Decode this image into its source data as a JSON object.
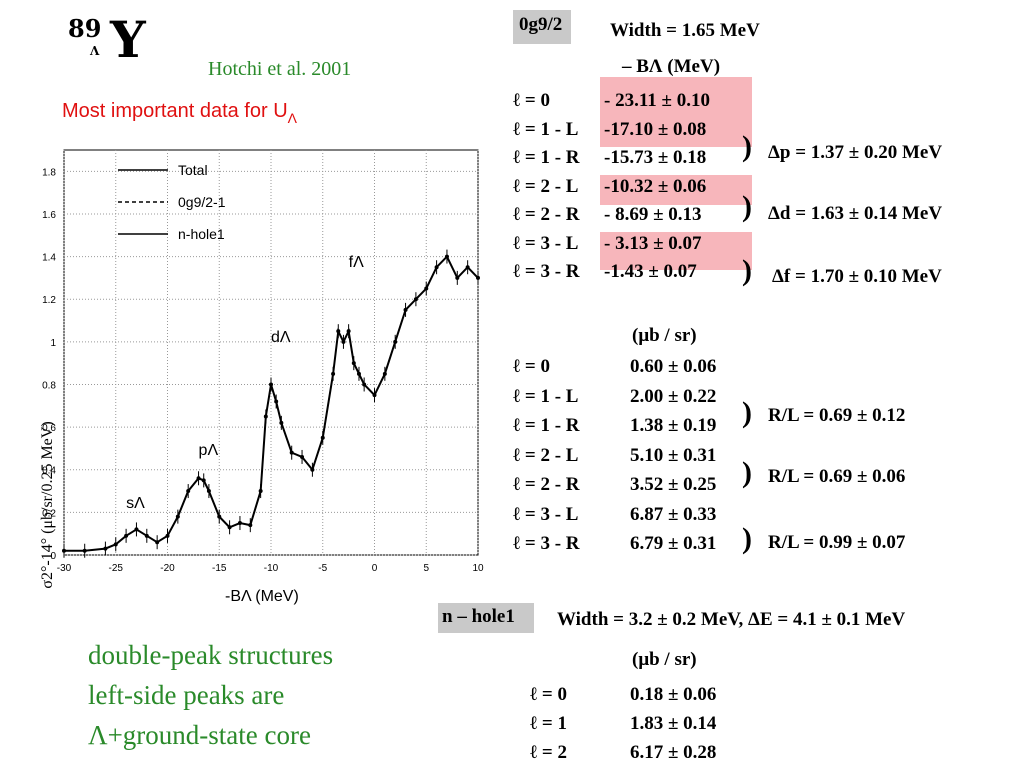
{
  "header": {
    "mass_number": "89",
    "lambda_sub": "Λ",
    "element": "Y",
    "reference": "Hotchi et al. 2001",
    "note_prefix": "Most important data for U",
    "note_sub": "Λ"
  },
  "notes": {
    "line1": "double-peak structures",
    "line2": "left-side peaks are",
    "line3": "Λ+ground-state core"
  },
  "figure": {
    "ylabel": "σ2°-14° (μb/sr/0.25 MeV)",
    "xlabel": "-BΛ (MeV)",
    "legend": [
      "Total",
      "0g9/2-1",
      "n-hole1"
    ],
    "peak_labels": [
      "sΛ",
      "pΛ",
      "dΛ",
      "fΛ"
    ]
  },
  "chart_data": {
    "type": "line",
    "xlabel": "-BΛ (MeV)",
    "ylabel": "σ2°-14° (μb/sr/0.25 MeV)",
    "xlim": [
      -30,
      10
    ],
    "ylim": [
      0,
      1.9
    ],
    "x_ticks": [
      "-30",
      "-25",
      "-20",
      "-15",
      "-10",
      "-5",
      "0",
      "5",
      "10"
    ],
    "y_ticks": [
      "0",
      "0.2",
      "0.4",
      "0.6",
      "0.8",
      "1",
      "1.2",
      "1.4",
      "1.6",
      "1.8"
    ],
    "grid": true,
    "legend_position": "top",
    "series": [
      {
        "name": "Total",
        "x": [
          -30,
          -28,
          -26,
          -25,
          -24,
          -23,
          -22,
          -21,
          -20,
          -19,
          -18,
          -17,
          -16.5,
          -16,
          -15,
          -14,
          -13,
          -12,
          -11,
          -10.5,
          -10,
          -9.5,
          -9,
          -8,
          -7,
          -6,
          -5,
          -4,
          -3.5,
          -3,
          -2.5,
          -2,
          -1.5,
          -1,
          0,
          1,
          2,
          3,
          4,
          5,
          6,
          7,
          8,
          9,
          10
        ],
        "y": [
          0.02,
          0.02,
          0.03,
          0.05,
          0.09,
          0.12,
          0.09,
          0.06,
          0.09,
          0.18,
          0.3,
          0.36,
          0.35,
          0.3,
          0.18,
          0.13,
          0.15,
          0.14,
          0.3,
          0.65,
          0.8,
          0.72,
          0.62,
          0.48,
          0.46,
          0.4,
          0.55,
          0.85,
          1.05,
          1.0,
          1.05,
          0.9,
          0.85,
          0.8,
          0.75,
          0.85,
          1.0,
          1.15,
          1.2,
          1.25,
          1.35,
          1.4,
          1.3,
          1.35,
          1.3
        ]
      }
    ]
  },
  "table_0g": {
    "header_box": "0g9/2",
    "width": "Width = 1.65 MeV",
    "col_header": "– BΛ (MeV)",
    "rows": [
      {
        "l": "ℓ = 0",
        "v": "- 23.11 ± 0.10"
      },
      {
        "l": "ℓ = 1 - L",
        "v": "-17.10 ± 0.08"
      },
      {
        "l": "ℓ = 1 - R",
        "v": "-15.73 ± 0.18"
      },
      {
        "l": "ℓ = 2 - L",
        "v": "-10.32 ± 0.06"
      },
      {
        "l": "ℓ = 2 - R",
        "v": "- 8.69 ± 0.13"
      },
      {
        "l": "ℓ = 3 - L",
        "v": "- 3.13 ± 0.07"
      },
      {
        "l": "ℓ = 3 - R",
        "v": "-1.43 ± 0.07"
      }
    ],
    "deltas": [
      "Δp = 1.37 ± 0.20 MeV",
      "Δd = 1.63 ± 0.14 MeV",
      "Δf = 1.70 ± 0.10 MeV"
    ],
    "unit": "(μb / sr)",
    "xs_rows": [
      {
        "l": "ℓ = 0",
        "v": "0.60 ± 0.06"
      },
      {
        "l": "ℓ = 1 - L",
        "v": "2.00 ± 0.22"
      },
      {
        "l": "ℓ = 1 - R",
        "v": "1.38 ± 0.19"
      },
      {
        "l": "ℓ = 2 - L",
        "v": "5.10 ± 0.31"
      },
      {
        "l": "ℓ = 2 - R",
        "v": "3.52 ± 0.25"
      },
      {
        "l": "ℓ = 3 - L",
        "v": "6.87 ± 0.33"
      },
      {
        "l": "ℓ = 3 - R",
        "v": "6.79 ± 0.31"
      }
    ],
    "ratios": [
      "R/L = 0.69 ± 0.12",
      "R/L = 0.69 ± 0.06",
      "R/L = 0.99 ± 0.07"
    ]
  },
  "table_nhole": {
    "header_box": "n – hole1",
    "width": "Width = 3.2 ± 0.2 MeV,  ΔE = 4.1 ± 0.1 MeV",
    "unit": "(μb / sr)",
    "rows": [
      {
        "l": "ℓ = 0",
        "v": "0.18 ± 0.06"
      },
      {
        "l": "ℓ = 1",
        "v": "1.83 ± 0.14"
      },
      {
        "l": "ℓ = 2",
        "v": "6.17 ± 0.28"
      }
    ]
  },
  "colors": {
    "highlight": "#f7b6bb",
    "green": "#2a8a2a",
    "red": "#e01010"
  }
}
